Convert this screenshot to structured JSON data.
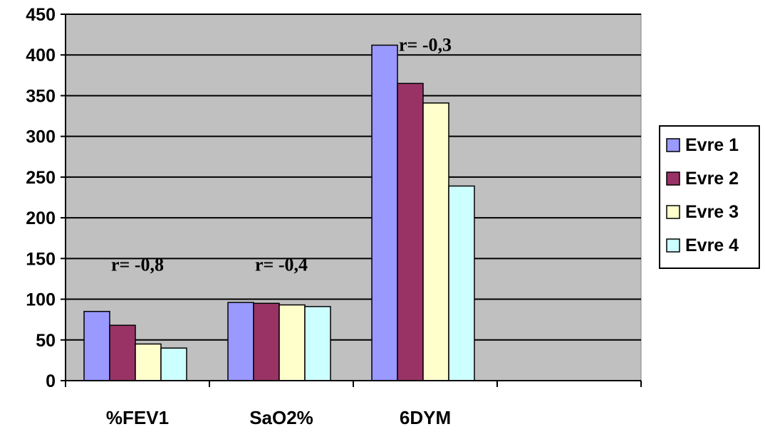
{
  "chart_data": {
    "type": "bar",
    "categories": [
      "%FEV1",
      "SaO2%",
      "6DYM"
    ],
    "category_slots": 4,
    "series": [
      {
        "name": "Evre 1",
        "values": [
          85,
          96,
          412
        ],
        "color": "#9999ff"
      },
      {
        "name": "Evre 2",
        "values": [
          68,
          95,
          365
        ],
        "color": "#993366"
      },
      {
        "name": "Evre 3",
        "values": [
          45,
          93,
          341
        ],
        "color": "#ffffcc"
      },
      {
        "name": "Evre 4",
        "values": [
          40,
          91,
          239
        ],
        "color": "#ccffff"
      }
    ],
    "ylim": [
      0,
      450
    ],
    "yticks": [
      0,
      50,
      100,
      150,
      200,
      250,
      300,
      350,
      400,
      450
    ],
    "grid": true,
    "plot_background": "#c0c0c0",
    "legend_position": "right",
    "annotations": [
      {
        "text": "r= -0,8",
        "category": 0,
        "y": 143
      },
      {
        "text": "r= -0,4",
        "category": 1,
        "y": 143
      },
      {
        "text": "r= -0,3",
        "category": 2,
        "y": 413
      }
    ]
  }
}
